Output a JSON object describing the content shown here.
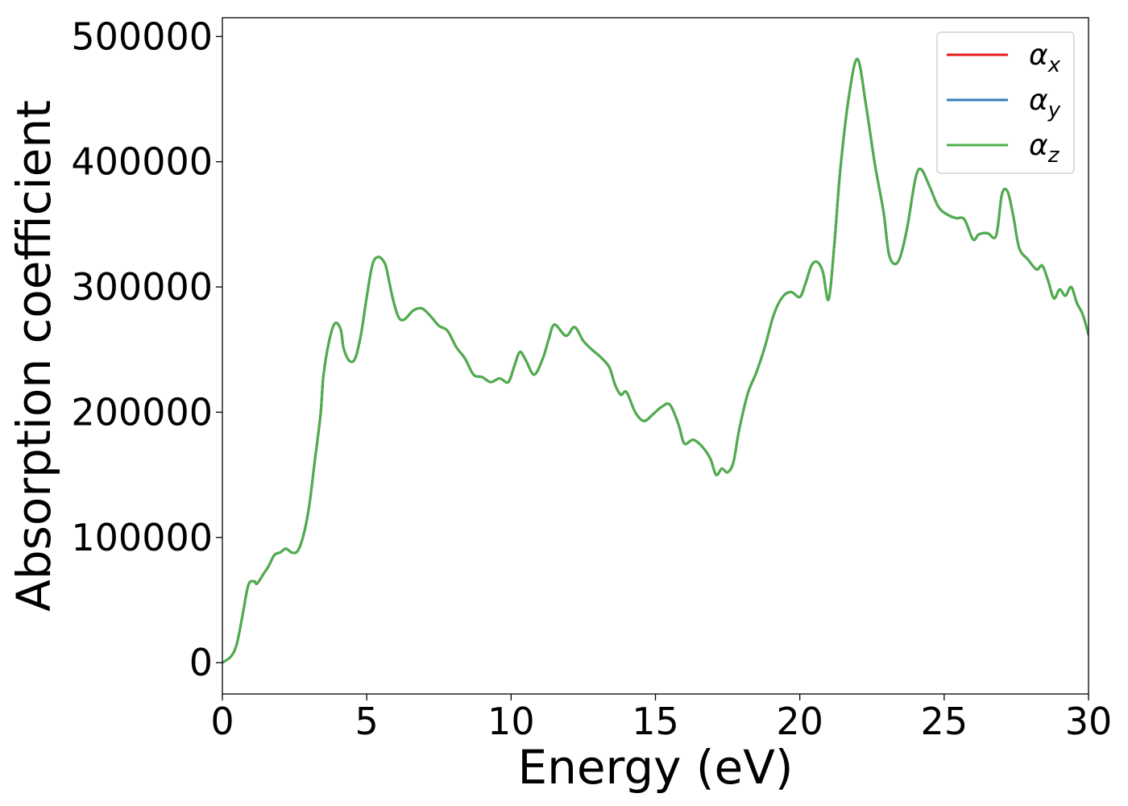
{
  "chart_data": {
    "type": "line",
    "title": "",
    "xlabel": "Energy (eV)",
    "ylabel": "Absorption coefficient",
    "xlim": [
      0,
      30
    ],
    "ylim": [
      -25000,
      515000
    ],
    "xticks": [
      0,
      5,
      10,
      15,
      20,
      25,
      30
    ],
    "xtick_labels": [
      "0",
      "5",
      "10",
      "15",
      "20",
      "25",
      "30"
    ],
    "yticks": [
      0,
      100000,
      200000,
      300000,
      400000,
      500000
    ],
    "ytick_labels": [
      "0",
      "100000",
      "200000",
      "300000",
      "400000",
      "500000"
    ],
    "grid": false,
    "legend_position": "top-right",
    "series": [
      {
        "name": "αx",
        "symbol": "α",
        "subscript": "x",
        "color": "#e41a1c"
      },
      {
        "name": "αy",
        "symbol": "α",
        "subscript": "y",
        "color": "#377eb8"
      },
      {
        "name": "αz",
        "symbol": "α",
        "subscript": "z",
        "color": "#4daf4a"
      }
    ],
    "x": [
      0,
      0.3,
      0.5,
      0.7,
      0.9,
      1.1,
      1.2,
      1.4,
      1.6,
      1.8,
      2.0,
      2.2,
      2.4,
      2.6,
      2.8,
      3.0,
      3.2,
      3.4,
      3.5,
      3.7,
      3.9,
      4.1,
      4.2,
      4.4,
      4.6,
      4.8,
      5.0,
      5.2,
      5.4,
      5.6,
      5.7,
      5.9,
      6.1,
      6.3,
      6.6,
      6.9,
      7.2,
      7.5,
      7.8,
      8.1,
      8.4,
      8.7,
      9.0,
      9.3,
      9.6,
      9.9,
      10.1,
      10.3,
      10.5,
      10.8,
      11.1,
      11.3,
      11.5,
      11.9,
      12.2,
      12.5,
      12.8,
      13.1,
      13.4,
      13.6,
      13.8,
      14.0,
      14.3,
      14.6,
      14.9,
      15.2,
      15.5,
      15.8,
      16.0,
      16.3,
      16.6,
      16.9,
      17.1,
      17.3,
      17.5,
      17.7,
      17.9,
      18.2,
      18.5,
      18.8,
      19.1,
      19.4,
      19.7,
      20.0,
      20.2,
      20.4,
      20.6,
      20.8,
      21.0,
      21.2,
      21.4,
      21.7,
      22.0,
      22.3,
      22.6,
      22.9,
      23.1,
      23.4,
      23.7,
      24.0,
      24.2,
      24.5,
      24.8,
      25.1,
      25.4,
      25.7,
      26.0,
      26.2,
      26.5,
      26.8,
      27.0,
      27.2,
      27.4,
      27.6,
      27.9,
      28.2,
      28.4,
      28.6,
      28.8,
      29.0,
      29.2,
      29.4,
      29.6,
      29.8,
      30.0
    ],
    "values": [
      0,
      5000,
      15000,
      38000,
      62000,
      65000,
      63000,
      70000,
      77000,
      86000,
      88000,
      91000,
      88000,
      89000,
      101000,
      124000,
      161000,
      198000,
      229000,
      257000,
      271000,
      266000,
      251000,
      241000,
      243000,
      262000,
      292000,
      318000,
      324000,
      320000,
      313000,
      291000,
      276000,
      274000,
      281000,
      283000,
      277000,
      269000,
      265000,
      252000,
      243000,
      230000,
      228000,
      224000,
      227000,
      224000,
      236000,
      248000,
      242000,
      230000,
      243000,
      258000,
      270000,
      261000,
      268000,
      257000,
      250000,
      244000,
      236000,
      222000,
      214000,
      216000,
      200000,
      193000,
      198000,
      204000,
      206000,
      190000,
      175000,
      178000,
      173000,
      163000,
      150000,
      155000,
      152000,
      160000,
      186000,
      215000,
      232000,
      253000,
      278000,
      292000,
      296000,
      292000,
      303000,
      317000,
      320000,
      312000,
      290000,
      335000,
      393000,
      452000,
      482000,
      444000,
      398000,
      360000,
      325000,
      320000,
      345000,
      386000,
      394000,
      380000,
      364000,
      358000,
      355000,
      354000,
      338000,
      342000,
      343000,
      341000,
      374000,
      376000,
      356000,
      331000,
      322000,
      314000,
      317000,
      305000,
      291000,
      298000,
      293000,
      300000,
      287000,
      278000,
      262000
    ]
  }
}
